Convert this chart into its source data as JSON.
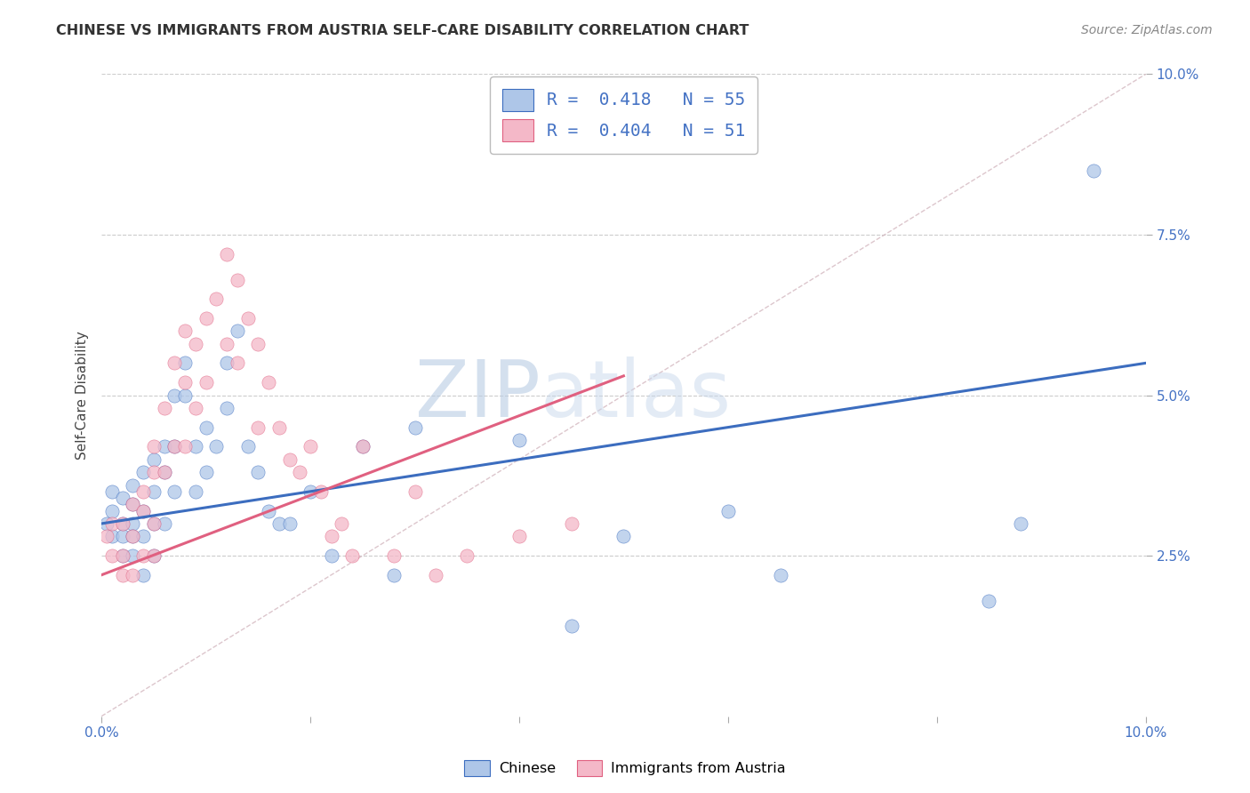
{
  "title": "CHINESE VS IMMIGRANTS FROM AUSTRIA SELF-CARE DISABILITY CORRELATION CHART",
  "source": "Source: ZipAtlas.com",
  "ylabel": "Self-Care Disability",
  "xlim": [
    0.0,
    0.1
  ],
  "ylim": [
    0.0,
    0.1
  ],
  "chinese_color": "#aec6e8",
  "austria_color": "#f4b8c8",
  "chinese_line_color": "#3c6dbf",
  "austria_line_color": "#e06080",
  "diagonal_color": "#cccccc",
  "watermark_zip": "ZIP",
  "watermark_atlas": "atlas",
  "legend_R_chinese": "0.418",
  "legend_N_chinese": "55",
  "legend_R_austria": "0.404",
  "legend_N_austria": "51",
  "chinese_scatter_x": [
    0.0005,
    0.001,
    0.001,
    0.001,
    0.002,
    0.002,
    0.002,
    0.002,
    0.003,
    0.003,
    0.003,
    0.003,
    0.003,
    0.004,
    0.004,
    0.004,
    0.004,
    0.005,
    0.005,
    0.005,
    0.005,
    0.006,
    0.006,
    0.006,
    0.007,
    0.007,
    0.007,
    0.008,
    0.008,
    0.009,
    0.009,
    0.01,
    0.01,
    0.011,
    0.012,
    0.012,
    0.013,
    0.014,
    0.015,
    0.016,
    0.017,
    0.018,
    0.02,
    0.022,
    0.025,
    0.028,
    0.03,
    0.04,
    0.045,
    0.05,
    0.06,
    0.065,
    0.085,
    0.088,
    0.095
  ],
  "chinese_scatter_y": [
    0.03,
    0.032,
    0.028,
    0.035,
    0.03,
    0.034,
    0.028,
    0.025,
    0.036,
    0.03,
    0.033,
    0.028,
    0.025,
    0.038,
    0.032,
    0.028,
    0.022,
    0.04,
    0.035,
    0.03,
    0.025,
    0.042,
    0.038,
    0.03,
    0.05,
    0.042,
    0.035,
    0.055,
    0.05,
    0.042,
    0.035,
    0.045,
    0.038,
    0.042,
    0.055,
    0.048,
    0.06,
    0.042,
    0.038,
    0.032,
    0.03,
    0.03,
    0.035,
    0.025,
    0.042,
    0.022,
    0.045,
    0.043,
    0.014,
    0.028,
    0.032,
    0.022,
    0.018,
    0.03,
    0.085
  ],
  "austria_scatter_x": [
    0.0005,
    0.001,
    0.001,
    0.002,
    0.002,
    0.002,
    0.003,
    0.003,
    0.003,
    0.004,
    0.004,
    0.004,
    0.005,
    0.005,
    0.005,
    0.005,
    0.006,
    0.006,
    0.007,
    0.007,
    0.008,
    0.008,
    0.008,
    0.009,
    0.009,
    0.01,
    0.01,
    0.011,
    0.012,
    0.012,
    0.013,
    0.013,
    0.014,
    0.015,
    0.015,
    0.016,
    0.017,
    0.018,
    0.019,
    0.02,
    0.021,
    0.022,
    0.023,
    0.024,
    0.025,
    0.028,
    0.03,
    0.032,
    0.035,
    0.04,
    0.045
  ],
  "austria_scatter_y": [
    0.028,
    0.03,
    0.025,
    0.03,
    0.025,
    0.022,
    0.033,
    0.028,
    0.022,
    0.035,
    0.032,
    0.025,
    0.042,
    0.038,
    0.03,
    0.025,
    0.048,
    0.038,
    0.055,
    0.042,
    0.06,
    0.052,
    0.042,
    0.058,
    0.048,
    0.062,
    0.052,
    0.065,
    0.072,
    0.058,
    0.068,
    0.055,
    0.062,
    0.058,
    0.045,
    0.052,
    0.045,
    0.04,
    0.038,
    0.042,
    0.035,
    0.028,
    0.03,
    0.025,
    0.042,
    0.025,
    0.035,
    0.022,
    0.025,
    0.028,
    0.03
  ],
  "background_color": "#ffffff",
  "grid_color": "#cccccc",
  "blue_line_x0": 0.0,
  "blue_line_y0": 0.03,
  "blue_line_x1": 0.1,
  "blue_line_y1": 0.055,
  "pink_line_x0": 0.0,
  "pink_line_y0": 0.022,
  "pink_line_x1": 0.05,
  "pink_line_y1": 0.053
}
